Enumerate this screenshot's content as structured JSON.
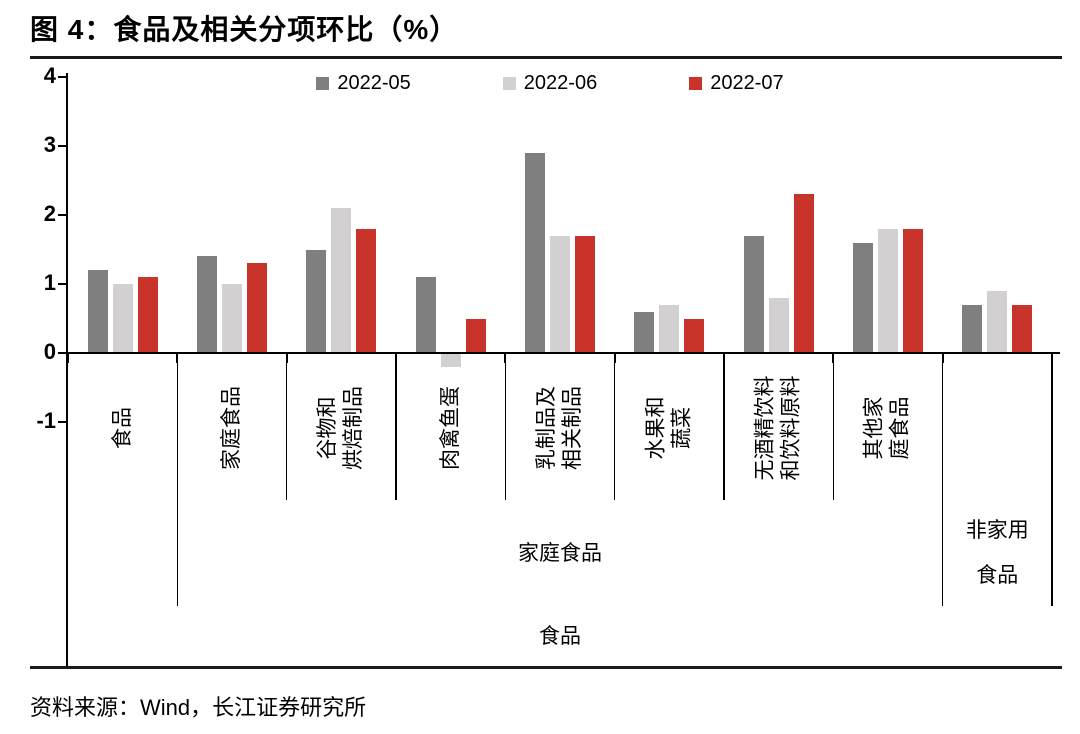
{
  "title": "图 4：食品及相关分项环比（%）",
  "source": "资料来源：Wind，长江证券研究所",
  "chart_data": {
    "type": "bar",
    "title": "图 4：食品及相关分项环比（%）",
    "xlabel": "",
    "ylabel": "",
    "ylim": [
      -1,
      4
    ],
    "ytick_values": [
      4,
      3,
      2,
      1,
      0,
      -1
    ],
    "grid": false,
    "legend_position": "top-center",
    "categories": [
      "食品",
      "家庭食品",
      "谷物和烘焙制品",
      "肉禽鱼蛋",
      "乳制品及相关制品",
      "水果和蔬菜",
      "无酒精饮料和饮料原料",
      "其他家庭食品",
      "非家用食品"
    ],
    "category_display_lines": [
      [
        "食品"
      ],
      [
        "家庭食品"
      ],
      [
        "谷物和",
        "烘焙制品"
      ],
      [
        "肉禽鱼蛋"
      ],
      [
        "乳制品及",
        "相关制品"
      ],
      [
        "水果和",
        "蔬菜"
      ],
      [
        "无酒精饮料",
        "和饮料原料"
      ],
      [
        "其他家",
        "庭食品"
      ],
      []
    ],
    "series": [
      {
        "name": "2022-05",
        "color": "#7f7f7f",
        "values": [
          1.2,
          1.4,
          1.5,
          1.1,
          2.9,
          0.6,
          1.7,
          1.6,
          0.7
        ]
      },
      {
        "name": "2022-06",
        "color": "#d2d0d0",
        "values": [
          1.0,
          1.0,
          2.1,
          -0.2,
          1.7,
          0.7,
          0.8,
          1.8,
          0.9
        ]
      },
      {
        "name": "2022-07",
        "color": "#c8342a",
        "values": [
          1.1,
          1.3,
          1.8,
          0.5,
          1.7,
          0.5,
          2.3,
          1.8,
          0.7
        ]
      }
    ],
    "axis_groups": {
      "level2": [
        {
          "label_lines": [
            "家庭食品"
          ],
          "from": 1,
          "to": 7
        },
        {
          "label_lines": [
            "非家用",
            "食品"
          ],
          "from": 8,
          "to": 8
        }
      ],
      "level3": [
        {
          "label_lines": [
            "食品"
          ],
          "from": 0,
          "to": 8
        }
      ]
    }
  }
}
